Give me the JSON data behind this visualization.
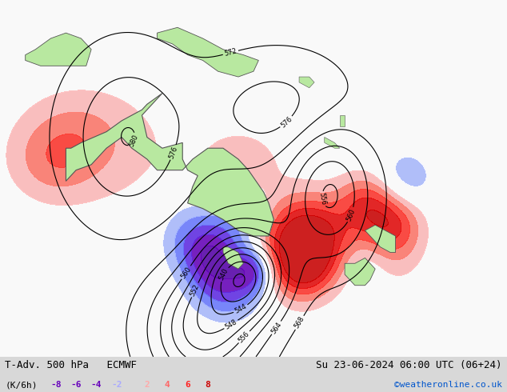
{
  "title_left": "T-Adv. 500 hPa   ECMWF",
  "title_right": "Su 23-06-2024 06:00 UTC (06+24)",
  "label_units": "(K/6h)",
  "legend_values": [
    "-8",
    "-6",
    "-4",
    "-2",
    "2",
    "4",
    "6",
    "8"
  ],
  "legend_colors_neg": [
    "#7b00d4",
    "#7b00d4",
    "#7b00d4",
    "#8888ff"
  ],
  "legend_colors_pos": [
    "#ffaaaa",
    "#ff6666",
    "#ff2222",
    "#cc0000"
  ],
  "watermark": "©weatheronline.co.uk",
  "watermark_color": "#0055cc",
  "bg_color": "#e8e8e8",
  "map_bg": "#f0f0f0",
  "figsize": [
    6.34,
    4.9
  ],
  "dpi": 100,
  "colorbar_levels": [
    -8,
    -6,
    -4,
    -2,
    0,
    2,
    4,
    6,
    8
  ],
  "neg_colors": [
    "#cc00cc",
    "#8800cc",
    "#5500aa",
    "#aaaaff"
  ],
  "pos_colors": [
    "#ffcccc",
    "#ff8888",
    "#ff4444",
    "#cc0000"
  ]
}
